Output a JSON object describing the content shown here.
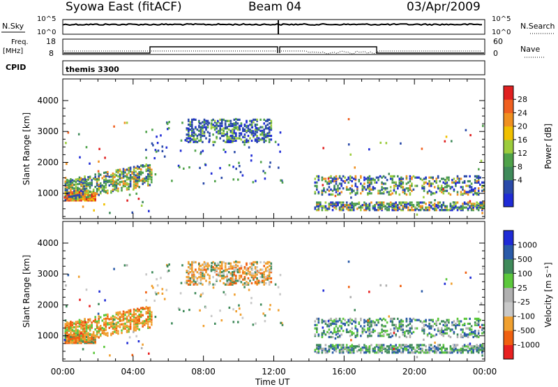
{
  "header": {
    "station": "Syowa East (fitACF)",
    "beam": "Beam 04",
    "date": "03/Apr/2009"
  },
  "strips": {
    "nsky": {
      "left_label": "N.Sky",
      "right_label": "N.Search",
      "ticks": [
        "10^5",
        "10^0"
      ]
    },
    "freq": {
      "left_label_1": "Freq.",
      "left_label_2": "[MHz]",
      "right_label": "Nave",
      "left_ticks": [
        "18",
        "8"
      ],
      "right_ticks": [
        "60",
        "0"
      ]
    },
    "cpid": {
      "left_label": "CPID",
      "program": "themis 3300"
    }
  },
  "colors": {
    "power": [
      "#1f2bd6",
      "#2a4aa8",
      "#3f8a5a",
      "#4fa24a",
      "#9ccc3c",
      "#f0c000",
      "#f09020",
      "#f06020",
      "#e02020"
    ],
    "velocity": [
      "#e82020",
      "#f06010",
      "#f0a030",
      "#c8c8c8",
      "#b0b0b0",
      "#5cc83c",
      "#3f8a5a",
      "#2a5aa8",
      "#1f2bd6"
    ]
  },
  "chart_data": [
    {
      "type": "heatmap",
      "panel": "power",
      "xlabel": "Time UT",
      "ylabel": "Slant Range [km]",
      "x_ticks": [
        "00:00",
        "04:00",
        "08:00",
        "12:00",
        "16:00",
        "20:00",
        "00:00"
      ],
      "y_ticks": [
        "1000",
        "2000",
        "3000",
        "4000"
      ],
      "xlim": [
        0,
        24
      ],
      "ylim": [
        180,
        4700
      ],
      "colorbar_label": "Power [dB]",
      "colorbar_ticks": [
        "4",
        "8",
        "12",
        "16",
        "20",
        "24",
        "28"
      ],
      "data_gap_hours": [
        12.6,
        14.3
      ],
      "echo_regions": [
        {
          "t0": 0.1,
          "t1": 1.8,
          "r0": 720,
          "r1": 1050,
          "value": "high"
        },
        {
          "t0": 0.1,
          "t1": 5.0,
          "r0": 1050,
          "r1": 1600,
          "value": "mid"
        },
        {
          "t0": 7.0,
          "t1": 11.7,
          "r0": 2700,
          "r1": 3400,
          "value": "low"
        },
        {
          "t0": 14.3,
          "t1": 23.9,
          "r0": 400,
          "r1": 1500,
          "value": "mixed"
        }
      ]
    },
    {
      "type": "heatmap",
      "panel": "velocity",
      "xlabel": "Time UT",
      "ylabel": "Slant Range [km]",
      "x_ticks": [
        "00:00",
        "04:00",
        "08:00",
        "12:00",
        "16:00",
        "20:00",
        "00:00"
      ],
      "y_ticks": [
        "1000",
        "2000",
        "3000",
        "4000"
      ],
      "xlim": [
        0,
        24
      ],
      "ylim": [
        180,
        4700
      ],
      "colorbar_label": "Velocity [m s⁻¹]",
      "colorbar_ticks": [
        "1000",
        "500",
        "100",
        "25",
        "-25",
        "-100",
        "-500",
        "-1000"
      ],
      "data_gap_hours": [
        12.6,
        14.3
      ]
    }
  ]
}
